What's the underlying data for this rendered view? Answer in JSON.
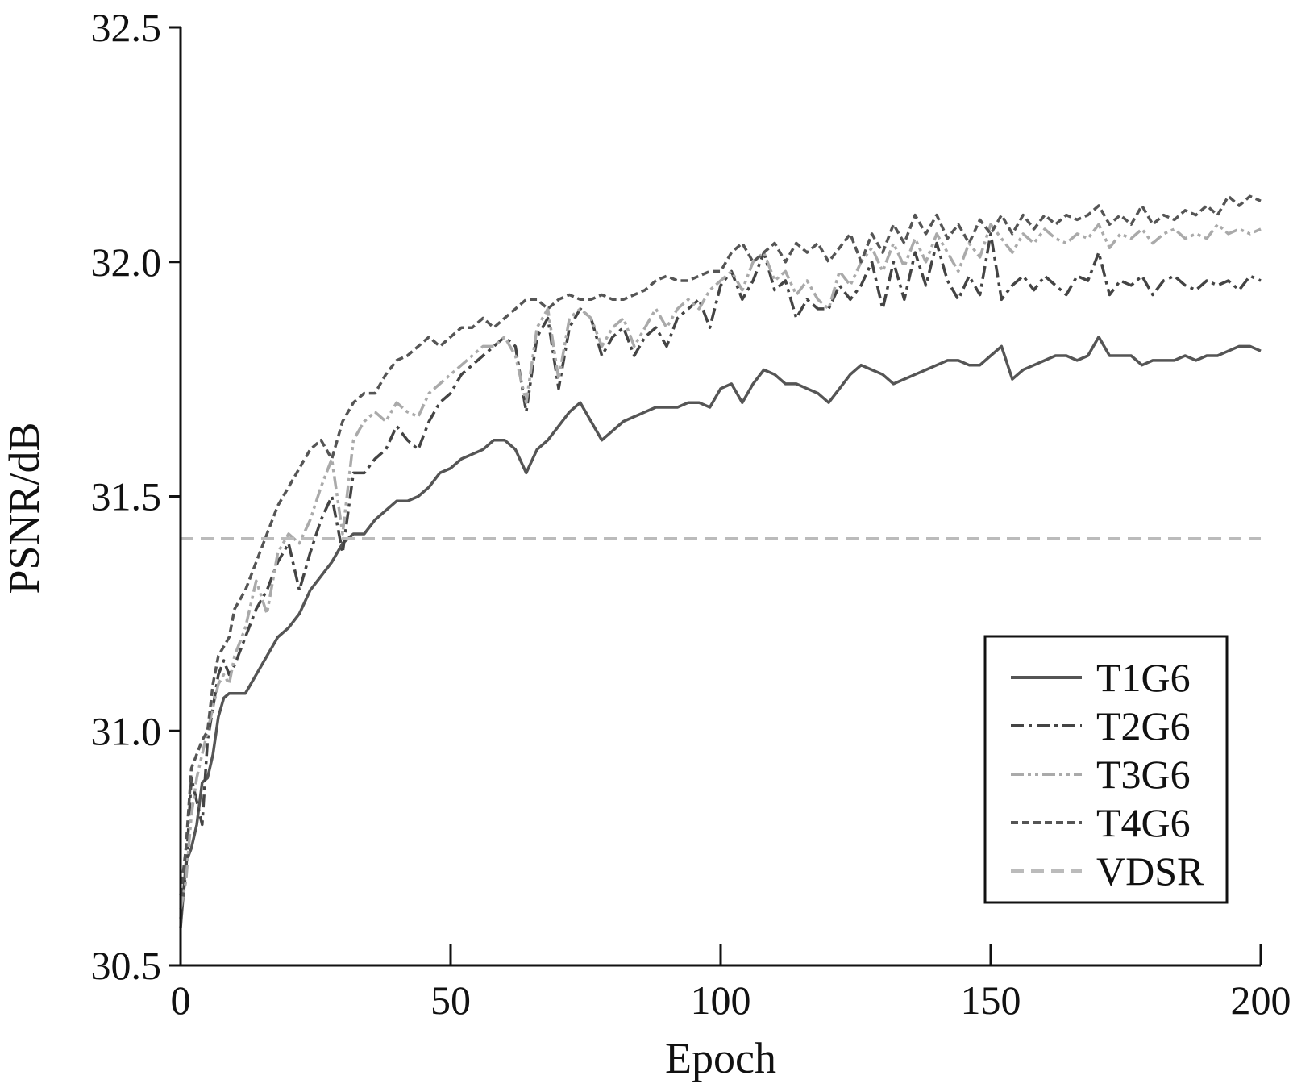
{
  "chart_data": {
    "type": "line",
    "title": "",
    "xlabel": "Epoch",
    "ylabel": "PSNR/dB",
    "xlim": [
      0,
      200
    ],
    "ylim": [
      30.5,
      32.5
    ],
    "xticks": [
      0,
      50,
      100,
      150,
      200
    ],
    "xtick_labels": [
      "0",
      "50",
      "100",
      "150",
      "200"
    ],
    "yticks": [
      30.5,
      31.0,
      31.5,
      32.0,
      32.5
    ],
    "ytick_labels": [
      "30.5",
      "31.0",
      "31.5",
      "32.0",
      "32.5"
    ],
    "grid": false,
    "legend_position": "bottom-right",
    "series": [
      {
        "name": "T1G6",
        "style": "solid",
        "color": "#555555",
        "x": [
          0,
          1,
          2,
          3,
          4,
          5,
          6,
          7,
          8,
          9,
          10,
          12,
          14,
          16,
          18,
          20,
          22,
          24,
          26,
          28,
          30,
          32,
          34,
          36,
          38,
          40,
          42,
          44,
          46,
          48,
          50,
          52,
          54,
          56,
          58,
          60,
          62,
          64,
          66,
          68,
          70,
          72,
          74,
          76,
          78,
          80,
          82,
          84,
          86,
          88,
          90,
          92,
          94,
          96,
          98,
          100,
          102,
          104,
          106,
          108,
          110,
          112,
          114,
          116,
          118,
          120,
          122,
          124,
          126,
          128,
          130,
          132,
          134,
          136,
          138,
          140,
          142,
          144,
          146,
          148,
          150,
          152,
          154,
          156,
          158,
          160,
          162,
          164,
          166,
          168,
          170,
          172,
          174,
          176,
          178,
          180,
          182,
          184,
          186,
          188,
          190,
          192,
          194,
          196,
          198,
          200
        ],
        "y": [
          30.58,
          30.72,
          30.75,
          30.8,
          30.89,
          30.9,
          30.95,
          31.03,
          31.07,
          31.08,
          31.08,
          31.08,
          31.12,
          31.16,
          31.2,
          31.22,
          31.25,
          31.3,
          31.33,
          31.36,
          31.4,
          31.42,
          31.42,
          31.45,
          31.47,
          31.49,
          31.49,
          31.5,
          31.52,
          31.55,
          31.56,
          31.58,
          31.59,
          31.6,
          31.62,
          31.62,
          31.6,
          31.55,
          31.6,
          31.62,
          31.65,
          31.68,
          31.7,
          31.66,
          31.62,
          31.64,
          31.66,
          31.67,
          31.68,
          31.69,
          31.69,
          31.69,
          31.7,
          31.7,
          31.69,
          31.73,
          31.74,
          31.7,
          31.74,
          31.77,
          31.76,
          31.74,
          31.74,
          31.73,
          31.72,
          31.7,
          31.73,
          31.76,
          31.78,
          31.77,
          31.76,
          31.74,
          31.75,
          31.76,
          31.77,
          31.78,
          31.79,
          31.79,
          31.78,
          31.78,
          31.8,
          31.82,
          31.75,
          31.77,
          31.78,
          31.79,
          31.8,
          31.8,
          31.79,
          31.8,
          31.84,
          31.8,
          31.8,
          31.8,
          31.78,
          31.79,
          31.79,
          31.79,
          31.8,
          31.79,
          31.8,
          31.8,
          31.81,
          31.82,
          31.82,
          31.81
        ]
      },
      {
        "name": "T2G6",
        "style": "dashdot",
        "color": "#444444",
        "x": [
          0,
          1,
          2,
          3,
          4,
          5,
          6,
          7,
          8,
          9,
          10,
          12,
          14,
          16,
          18,
          20,
          22,
          24,
          26,
          28,
          30,
          32,
          34,
          36,
          38,
          40,
          42,
          44,
          46,
          48,
          50,
          52,
          54,
          56,
          58,
          60,
          62,
          64,
          66,
          68,
          70,
          72,
          74,
          76,
          78,
          80,
          82,
          84,
          86,
          88,
          90,
          92,
          94,
          96,
          98,
          100,
          102,
          104,
          106,
          108,
          110,
          112,
          114,
          116,
          118,
          120,
          122,
          124,
          126,
          128,
          130,
          132,
          134,
          136,
          138,
          140,
          142,
          144,
          146,
          148,
          150,
          152,
          154,
          156,
          158,
          160,
          162,
          164,
          166,
          168,
          170,
          172,
          174,
          176,
          178,
          180,
          182,
          184,
          186,
          188,
          190,
          192,
          194,
          196,
          198,
          200
        ],
        "y": [
          30.6,
          30.7,
          30.9,
          30.85,
          30.8,
          30.98,
          31.05,
          31.12,
          31.15,
          31.12,
          31.14,
          31.2,
          31.26,
          31.3,
          31.36,
          31.4,
          31.3,
          31.38,
          31.45,
          31.5,
          31.38,
          31.55,
          31.55,
          31.58,
          31.6,
          31.65,
          31.62,
          31.6,
          31.66,
          31.7,
          31.72,
          31.76,
          31.78,
          31.8,
          31.82,
          31.84,
          31.82,
          31.68,
          31.84,
          31.88,
          31.73,
          31.86,
          31.9,
          31.88,
          31.8,
          31.84,
          31.86,
          31.8,
          31.84,
          31.86,
          31.82,
          31.88,
          31.9,
          31.92,
          31.86,
          31.95,
          31.98,
          31.92,
          31.96,
          32.02,
          31.94,
          31.96,
          31.88,
          31.92,
          31.9,
          31.9,
          31.95,
          31.92,
          31.95,
          32.0,
          31.9,
          32.0,
          31.92,
          32.02,
          31.95,
          32.04,
          31.96,
          31.92,
          31.97,
          31.93,
          32.06,
          31.92,
          31.95,
          31.97,
          31.94,
          31.97,
          31.95,
          31.93,
          31.97,
          31.96,
          32.02,
          31.93,
          31.96,
          31.95,
          31.97,
          31.93,
          31.96,
          31.97,
          31.95,
          31.94,
          31.96,
          31.95,
          31.96,
          31.94,
          31.97,
          31.96
        ]
      },
      {
        "name": "T3G6",
        "style": "dashdotdot",
        "color": "#aaaaaa",
        "x": [
          0,
          1,
          2,
          3,
          4,
          5,
          6,
          7,
          8,
          9,
          10,
          12,
          14,
          16,
          18,
          20,
          22,
          24,
          26,
          28,
          30,
          32,
          34,
          36,
          38,
          40,
          42,
          44,
          46,
          48,
          50,
          52,
          54,
          56,
          58,
          60,
          62,
          64,
          66,
          68,
          70,
          72,
          74,
          76,
          78,
          80,
          82,
          84,
          86,
          88,
          90,
          92,
          94,
          96,
          98,
          100,
          102,
          104,
          106,
          108,
          110,
          112,
          114,
          116,
          118,
          120,
          122,
          124,
          126,
          128,
          130,
          132,
          134,
          136,
          138,
          140,
          142,
          144,
          146,
          148,
          150,
          152,
          154,
          156,
          158,
          160,
          162,
          164,
          166,
          168,
          170,
          172,
          174,
          176,
          178,
          180,
          182,
          184,
          186,
          188,
          190,
          192,
          194,
          196,
          198,
          200
        ],
        "y": [
          30.62,
          30.68,
          30.82,
          30.9,
          30.95,
          31.0,
          31.05,
          31.1,
          31.12,
          31.1,
          31.16,
          31.22,
          31.32,
          31.25,
          31.38,
          31.42,
          31.4,
          31.45,
          31.52,
          31.58,
          31.42,
          31.62,
          31.66,
          31.68,
          31.66,
          31.7,
          31.68,
          31.67,
          31.72,
          31.74,
          31.76,
          31.78,
          31.8,
          31.82,
          31.82,
          31.84,
          31.8,
          31.7,
          31.86,
          31.9,
          31.75,
          31.88,
          31.9,
          31.88,
          31.82,
          31.86,
          31.88,
          31.82,
          31.86,
          31.9,
          31.86,
          31.9,
          31.92,
          31.9,
          31.94,
          31.96,
          31.98,
          31.94,
          32.0,
          32.02,
          31.96,
          31.98,
          31.93,
          31.96,
          31.92,
          31.9,
          31.98,
          31.95,
          32.0,
          32.03,
          31.98,
          32.04,
          31.99,
          32.05,
          32.0,
          32.06,
          32.02,
          31.98,
          32.04,
          32.01,
          32.08,
          32.05,
          32.02,
          32.06,
          32.04,
          32.07,
          32.05,
          32.04,
          32.06,
          32.05,
          32.08,
          32.03,
          32.06,
          32.05,
          32.07,
          32.04,
          32.06,
          32.07,
          32.05,
          32.06,
          32.05,
          32.08,
          32.06,
          32.07,
          32.06,
          32.07
        ]
      },
      {
        "name": "T4G6",
        "style": "dashed",
        "color": "#555555",
        "x": [
          0,
          1,
          2,
          3,
          4,
          5,
          6,
          7,
          8,
          9,
          10,
          12,
          14,
          16,
          18,
          20,
          22,
          24,
          26,
          28,
          30,
          32,
          34,
          36,
          38,
          40,
          42,
          44,
          46,
          48,
          50,
          52,
          54,
          56,
          58,
          60,
          62,
          64,
          66,
          68,
          70,
          72,
          74,
          76,
          78,
          80,
          82,
          84,
          86,
          88,
          90,
          92,
          94,
          96,
          98,
          100,
          102,
          104,
          106,
          108,
          110,
          112,
          114,
          116,
          118,
          120,
          122,
          124,
          126,
          128,
          130,
          132,
          134,
          136,
          138,
          140,
          142,
          144,
          146,
          148,
          150,
          152,
          154,
          156,
          158,
          160,
          162,
          164,
          166,
          168,
          170,
          172,
          174,
          176,
          178,
          180,
          182,
          184,
          186,
          188,
          190,
          192,
          194,
          196,
          198,
          200
        ],
        "y": [
          30.65,
          30.75,
          30.92,
          30.95,
          30.98,
          31.0,
          31.1,
          31.16,
          31.18,
          31.2,
          31.26,
          31.3,
          31.36,
          31.42,
          31.48,
          31.52,
          31.56,
          31.6,
          31.62,
          31.58,
          31.66,
          31.7,
          31.72,
          31.72,
          31.76,
          31.79,
          31.8,
          31.82,
          31.84,
          31.82,
          31.84,
          31.86,
          31.86,
          31.88,
          31.86,
          31.88,
          31.9,
          31.92,
          31.92,
          31.9,
          31.92,
          31.93,
          31.92,
          31.92,
          31.93,
          31.92,
          31.92,
          31.93,
          31.94,
          31.96,
          31.97,
          31.96,
          31.96,
          31.97,
          31.98,
          31.98,
          32.02,
          32.04,
          32.0,
          32.02,
          32.04,
          32.0,
          32.04,
          32.02,
          32.04,
          32.0,
          32.03,
          32.06,
          32.0,
          32.06,
          32.02,
          32.08,
          32.04,
          32.1,
          32.06,
          32.1,
          32.05,
          32.08,
          32.04,
          32.09,
          32.06,
          32.1,
          32.06,
          32.1,
          32.07,
          32.1,
          32.08,
          32.1,
          32.09,
          32.1,
          32.12,
          32.08,
          32.1,
          32.08,
          32.12,
          32.08,
          32.1,
          32.09,
          32.11,
          32.1,
          32.12,
          32.1,
          32.14,
          32.12,
          32.14,
          32.13
        ]
      },
      {
        "name": "VDSR",
        "style": "dashed-light",
        "color": "#bbbbbb",
        "x": [
          0,
          200
        ],
        "y": [
          31.41,
          31.41
        ]
      }
    ]
  }
}
